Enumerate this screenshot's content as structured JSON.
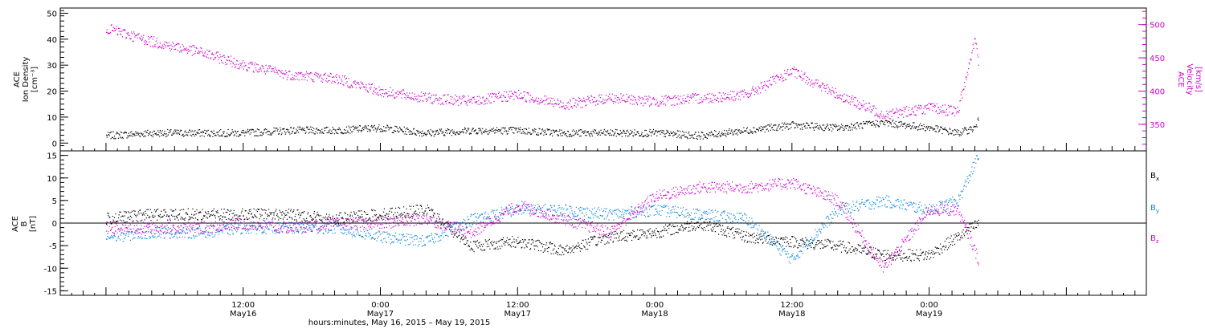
{
  "chart_data": [
    {
      "type": "line",
      "panel": "top",
      "ylabel_left": [
        "ACE",
        "Ion Density",
        "[cm⁻³]"
      ],
      "ylabel_right": [
        "ACE",
        "Velocity",
        "[km/s]"
      ],
      "left_ylim": [
        -3,
        52
      ],
      "left_ticks": [
        0,
        10,
        20,
        30,
        40,
        50
      ],
      "right_ylim": [
        310,
        525
      ],
      "right_ticks": [
        350,
        400,
        450,
        500
      ],
      "colors": {
        "density": "#000000",
        "velocity": "#cc00cc"
      },
      "x_hours": [
        0,
        4,
        8,
        12,
        16,
        20,
        24,
        28,
        32,
        36,
        40,
        44,
        48,
        52,
        56,
        60,
        64,
        68,
        72,
        74.5,
        76,
        76.3
      ],
      "series": [
        {
          "key": "density",
          "axis": "left",
          "color": "#000000",
          "values": [
            3,
            4,
            4,
            4,
            5,
            5,
            6,
            4,
            5,
            5,
            4,
            4,
            4,
            3,
            5,
            7,
            6,
            8,
            6,
            4,
            6,
            9
          ]
        },
        {
          "key": "velocity",
          "axis": "right",
          "color": "#cc00cc",
          "values": [
            495,
            475,
            460,
            440,
            425,
            420,
            400,
            390,
            385,
            395,
            380,
            390,
            385,
            390,
            395,
            430,
            395,
            365,
            375,
            370,
            480,
            445
          ]
        }
      ]
    },
    {
      "type": "line",
      "panel": "bottom",
      "ylabel": [
        "ACE",
        "B",
        "[nT]"
      ],
      "ylim": [
        -16,
        16
      ],
      "ticks": [
        -15,
        -10,
        -5,
        0,
        5,
        10,
        15
      ],
      "zero_line": true,
      "x_hours": [
        0,
        4,
        8,
        12,
        16,
        20,
        24,
        28,
        32,
        36,
        40,
        44,
        48,
        52,
        56,
        60,
        64,
        68,
        72,
        74.5,
        76.3
      ],
      "series": [
        {
          "key": "Bx",
          "color": "#000000",
          "values": [
            1,
            2,
            2,
            2,
            2,
            1,
            2,
            3,
            -5,
            -4,
            -6,
            -3,
            -2,
            0,
            -3,
            -4,
            -5,
            -7,
            -7,
            -3,
            0
          ]
        },
        {
          "key": "By",
          "color": "#1188dd",
          "values": [
            -3,
            -2,
            -2,
            -1,
            -1,
            -1,
            -3,
            -4,
            1,
            3,
            3,
            2,
            3,
            2,
            1,
            -8,
            3,
            5,
            3,
            5,
            15
          ]
        },
        {
          "key": "Bz",
          "color": "#cc00cc",
          "values": [
            -1,
            -1,
            -1,
            0,
            -1,
            0,
            0,
            1,
            -2,
            4,
            1,
            -2,
            6,
            8,
            8,
            9,
            5,
            -10,
            3,
            3,
            -8
          ]
        }
      ],
      "legend": {
        "placement": "right",
        "items": [
          {
            "label": "B",
            "sub": "x",
            "color": "#000000"
          },
          {
            "label": "B",
            "sub": "y",
            "color": "#1188dd"
          },
          {
            "label": "B",
            "sub": "z",
            "color": "#cc00cc"
          }
        ]
      }
    }
  ],
  "x_axis": {
    "xlim_hours": [
      -4,
      91
    ],
    "ticks": [
      {
        "hour": 12,
        "time": "12:00",
        "date": "May16"
      },
      {
        "hour": 24,
        "time": "0:00",
        "date": "May17"
      },
      {
        "hour": 36,
        "time": "12:00",
        "date": "May17"
      },
      {
        "hour": 48,
        "time": "0:00",
        "date": "May18"
      },
      {
        "hour": 60,
        "time": "12:00",
        "date": "May18"
      },
      {
        "hour": 72,
        "time": "0:00",
        "date": "May19"
      }
    ],
    "label": "hours:minutes, May 16, 2015 – May 19, 2015"
  }
}
